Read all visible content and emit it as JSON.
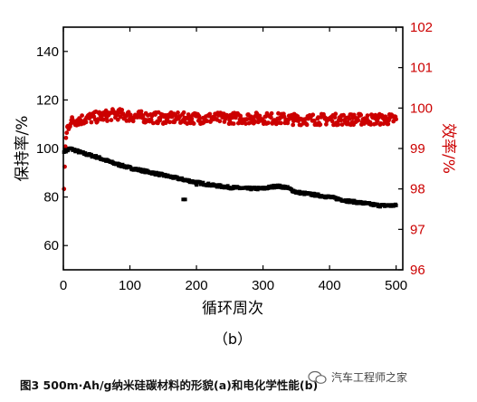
{
  "chart_data": {
    "type": "scatter",
    "panel_label": "（b）",
    "xlabel": "循环周次",
    "ylabel_left": "保持率/%",
    "ylabel_right": "效率/%",
    "xlim": [
      0,
      510
    ],
    "ylim_left": [
      50,
      150
    ],
    "ylim_right": [
      96,
      102
    ],
    "x_ticks": [
      0,
      100,
      200,
      300,
      400,
      500
    ],
    "y_ticks_left": [
      60,
      80,
      100,
      120,
      140
    ],
    "y_ticks_right": [
      96,
      97,
      98,
      99,
      100,
      101,
      102
    ],
    "grid": false,
    "series": [
      {
        "axis": "left",
        "color": "#000000",
        "marker": "square",
        "points": [
          [
            1,
            99
          ],
          [
            5,
            99
          ],
          [
            10,
            100
          ],
          [
            20,
            99
          ],
          [
            30,
            98
          ],
          [
            50,
            96.5
          ],
          [
            75,
            94
          ],
          [
            100,
            92
          ],
          [
            125,
            90.5
          ],
          [
            150,
            89
          ],
          [
            175,
            87.5
          ],
          [
            200,
            86
          ],
          [
            225,
            84.8
          ],
          [
            250,
            84
          ],
          [
            275,
            83.5
          ],
          [
            300,
            83.5
          ],
          [
            320,
            84.5
          ],
          [
            335,
            84
          ],
          [
            350,
            82
          ],
          [
            375,
            81
          ],
          [
            400,
            80
          ],
          [
            425,
            78.5
          ],
          [
            450,
            77.5
          ],
          [
            475,
            76.5
          ],
          [
            500,
            76.5
          ]
        ],
        "outliers": [
          [
            180,
            79
          ],
          [
            183,
            79
          ],
          [
            200,
            85
          ]
        ]
      },
      {
        "axis": "right",
        "color": "#cc0000",
        "marker": "circle",
        "points": [
          [
            1,
            98
          ],
          [
            3,
            99.1
          ],
          [
            6,
            99.5
          ],
          [
            10,
            99.65
          ],
          [
            20,
            99.7
          ],
          [
            40,
            99.75
          ],
          [
            60,
            99.8
          ],
          [
            80,
            99.85
          ],
          [
            100,
            99.8
          ],
          [
            150,
            99.75
          ],
          [
            200,
            99.75
          ],
          [
            250,
            99.75
          ],
          [
            300,
            99.75
          ],
          [
            350,
            99.72
          ],
          [
            400,
            99.72
          ],
          [
            450,
            99.72
          ],
          [
            500,
            99.72
          ]
        ]
      }
    ]
  },
  "caption": "图3  500m·Ah/g纳米硅碳材料的形貌(a)和电化学性能(b)",
  "watermark": "汽车工程师之家"
}
